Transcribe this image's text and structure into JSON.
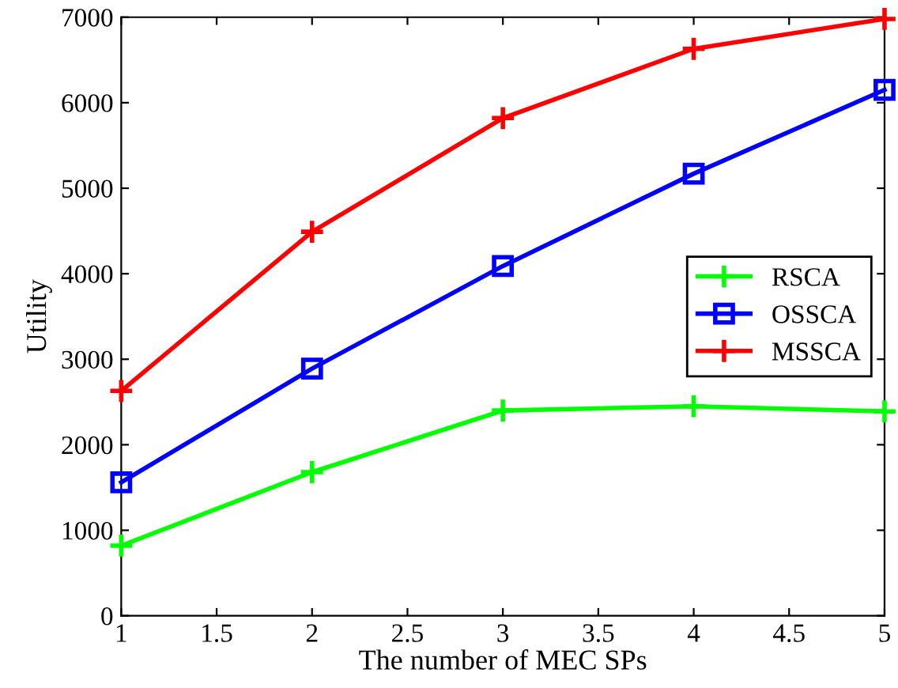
{
  "chart_data": {
    "type": "line",
    "xlabel": "The number of MEC SPs",
    "ylabel": "Utility",
    "x": [
      1,
      2,
      3,
      4,
      5
    ],
    "series": [
      {
        "name": "RSCA",
        "color": "#00ff00",
        "marker": "cross",
        "values": [
          820,
          1680,
          2400,
          2450,
          2390
        ]
      },
      {
        "name": "OSSCA",
        "color": "#0000ff",
        "marker": "square",
        "values": [
          1560,
          2890,
          4090,
          5170,
          6150
        ]
      },
      {
        "name": "MSSCA",
        "color": "#ff0000",
        "marker": "cross",
        "values": [
          2630,
          4490,
          5820,
          6630,
          6980
        ]
      }
    ],
    "xlim": [
      1,
      5
    ],
    "xticks": [
      1,
      1.5,
      2,
      2.5,
      3,
      3.5,
      4,
      4.5,
      5
    ],
    "ylim": [
      0,
      7000
    ],
    "yticks": [
      0,
      1000,
      2000,
      3000,
      4000,
      5000,
      6000,
      7000
    ],
    "grid": false,
    "legend": "center right",
    "line_style": "solid"
  }
}
